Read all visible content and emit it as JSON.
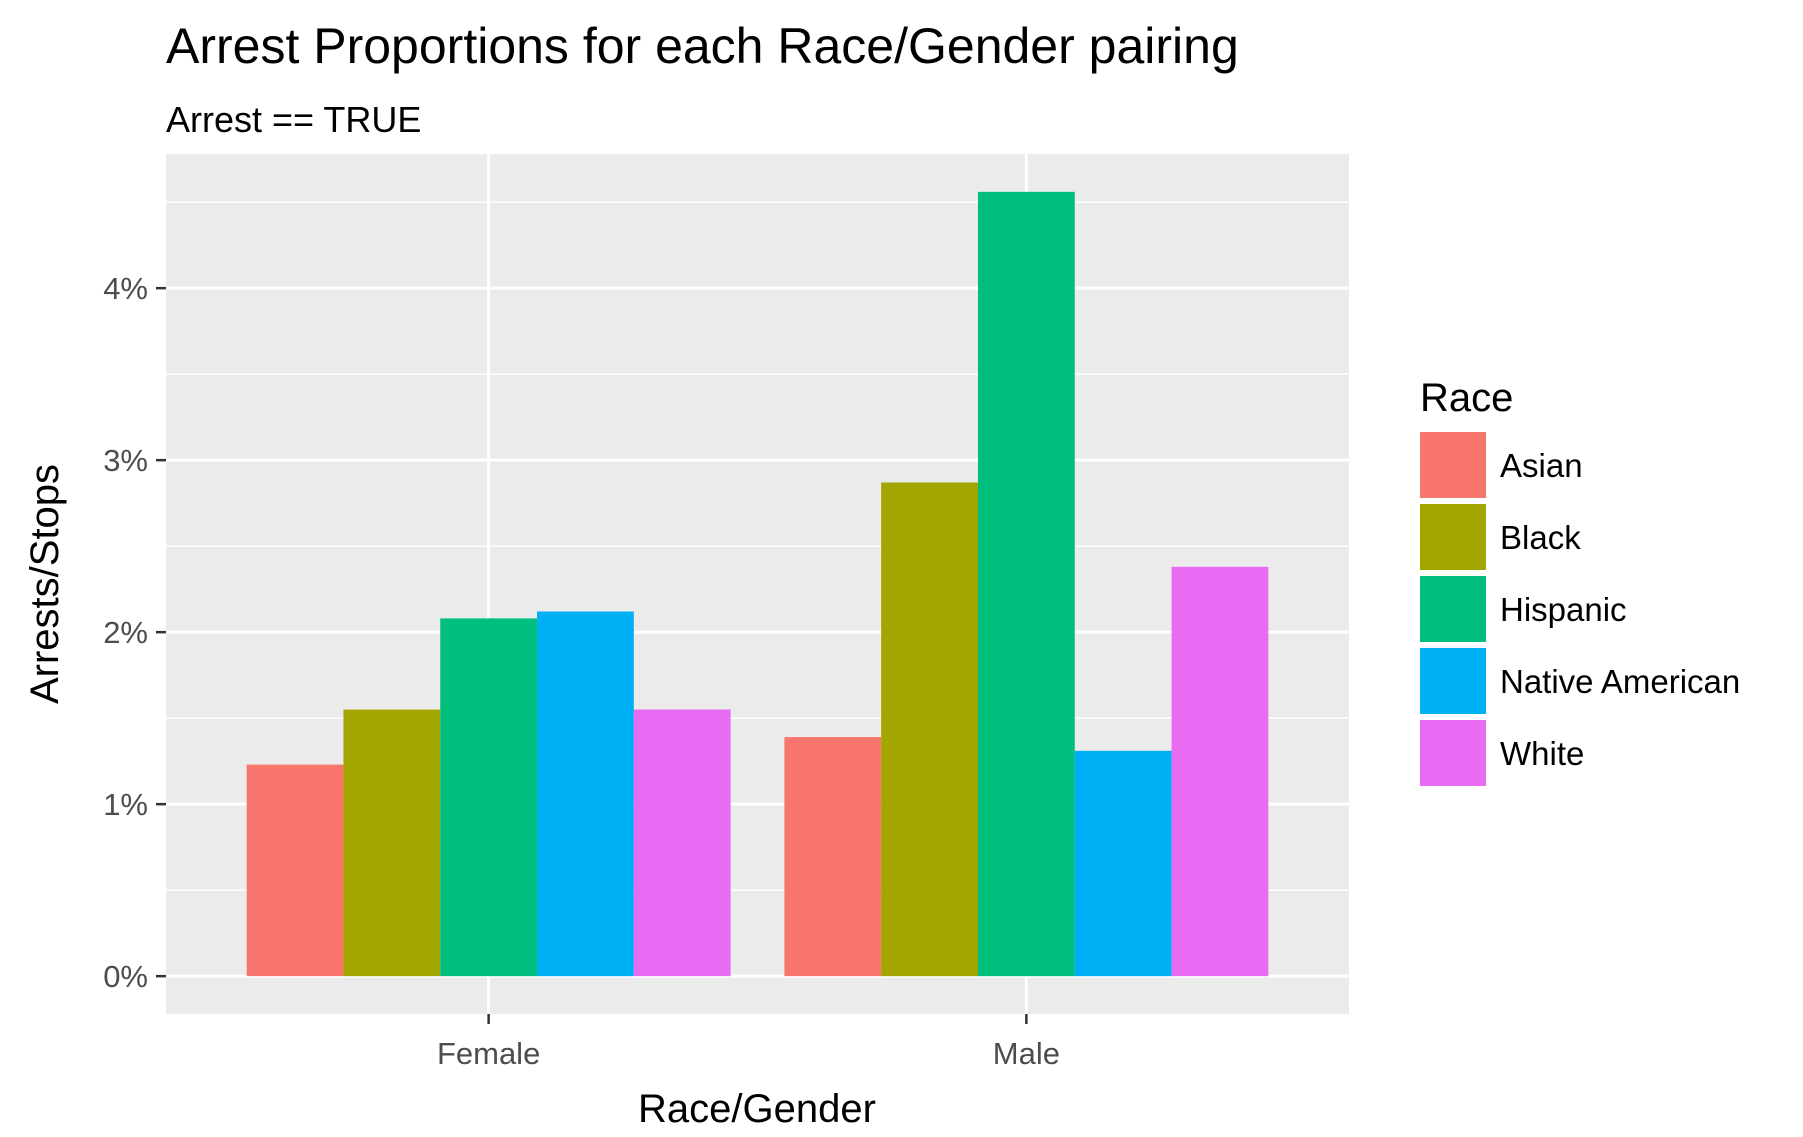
{
  "chart_data": {
    "type": "bar",
    "title": "Arrest Proportions for each Race/Gender pairing",
    "subtitle": "Arrest == TRUE",
    "xlabel": "Race/Gender",
    "ylabel": "Arrests/Stops",
    "categories": [
      "Female",
      "Male"
    ],
    "series": [
      {
        "name": "Asian",
        "color": "#F8766D",
        "values": [
          1.23,
          1.39
        ]
      },
      {
        "name": "Black",
        "color": "#A3A500",
        "values": [
          1.55,
          2.87
        ]
      },
      {
        "name": "Hispanic",
        "color": "#00BF7D",
        "values": [
          2.08,
          4.56
        ]
      },
      {
        "name": "Native American",
        "color": "#00B0F6",
        "values": [
          2.12,
          1.31
        ]
      },
      {
        "name": "White",
        "color": "#E76BF3",
        "values": [
          1.55,
          2.38
        ]
      }
    ],
    "ylim": [
      -0.22,
      4.78
    ],
    "yticks": [
      0,
      1,
      2,
      3,
      4
    ],
    "ytick_labels": [
      "0%",
      "1%",
      "2%",
      "3%",
      "4%"
    ],
    "grid": true,
    "panel_background": "#EBEBEB",
    "legend": {
      "title": "Race",
      "position": "right"
    }
  }
}
